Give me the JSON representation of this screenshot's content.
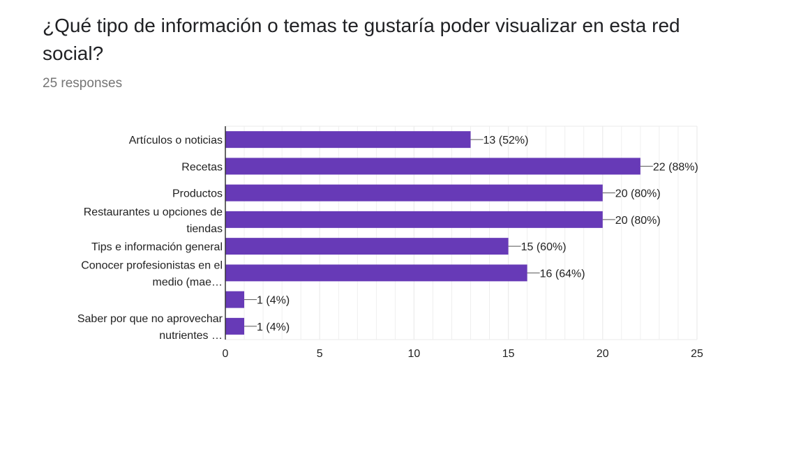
{
  "question": {
    "title": "¿Qué tipo de información o temas te gustaría poder visualizar en esta red social?",
    "responses": "25 responses"
  },
  "colors": {
    "bar": "#673ab7",
    "grid": "#ebebeb",
    "axis": "#333333",
    "text": "#222222"
  },
  "chart_data": {
    "type": "bar",
    "orientation": "horizontal",
    "title": "¿Qué tipo de información o temas te gustaría poder visualizar en esta red social?",
    "categories": [
      [
        "Artículos o noticias"
      ],
      [
        "Recetas"
      ],
      [
        "Productos"
      ],
      [
        "Restaurantes u opciones de",
        "tiendas"
      ],
      [
        "Tips e información general"
      ],
      [
        "Conocer profesionistas en el",
        "medio (mae…"
      ],
      [
        ""
      ],
      [
        "Saber por que no aprovechar",
        "nutrientes …"
      ]
    ],
    "values": [
      13,
      22,
      20,
      20,
      15,
      16,
      1,
      1
    ],
    "data_labels": [
      "13 (52%)",
      "22 (88%)",
      "20 (80%)",
      "20 (80%)",
      "15 (60%)",
      "16 (64%)",
      "1 (4%)",
      "1 (4%)"
    ],
    "xticks": [
      "0",
      "5",
      "10",
      "15",
      "20",
      "25"
    ],
    "xlim": [
      0,
      25
    ],
    "xlabel": "",
    "ylabel": "",
    "grid": true
  }
}
